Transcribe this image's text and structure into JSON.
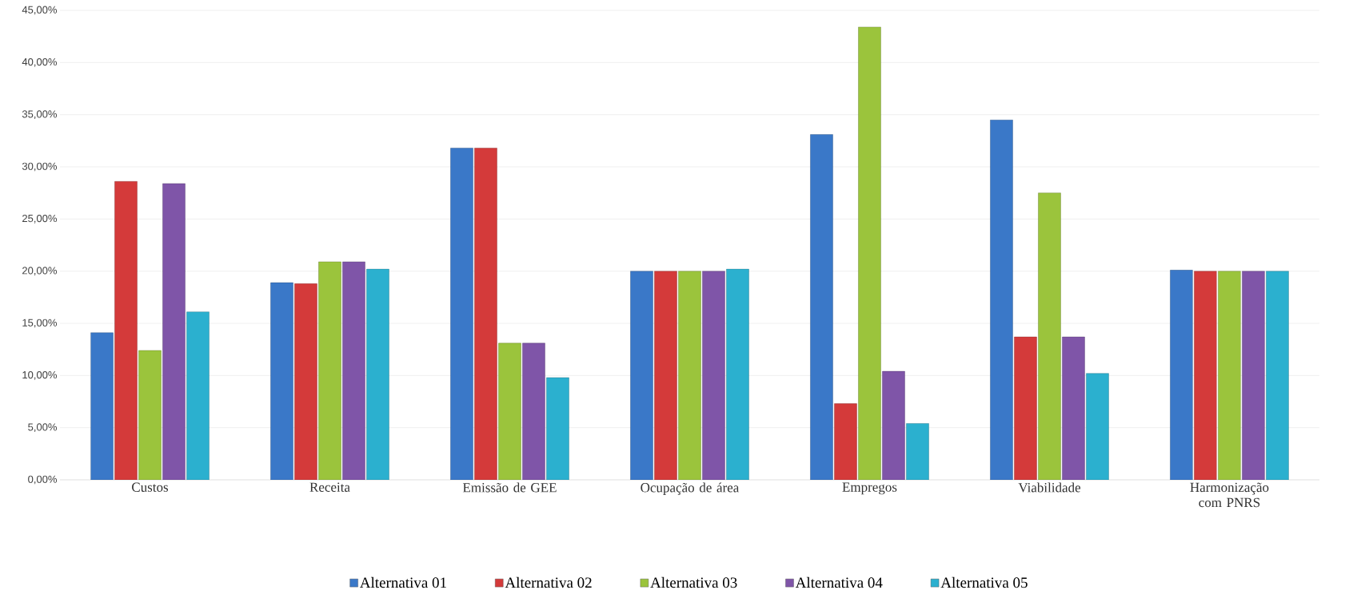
{
  "chart_data": {
    "type": "bar",
    "categories": [
      "Custos",
      "Receita",
      "Emissão de GEE",
      "Ocupação de área",
      "Empregos",
      "Viabilidade",
      "Harmonização com PNRS"
    ],
    "series": [
      {
        "name": "Alternativa 01",
        "color": "#3a78c8",
        "values": [
          14.1,
          18.9,
          31.8,
          20.0,
          33.1,
          34.5,
          20.1
        ]
      },
      {
        "name": "Alternativa 02",
        "color": "#d43a3a",
        "values": [
          28.6,
          18.8,
          31.8,
          20.0,
          7.3,
          13.7,
          20.0
        ]
      },
      {
        "name": "Alternativa 03",
        "color": "#9bc43c",
        "values": [
          12.4,
          20.9,
          13.1,
          20.0,
          43.4,
          27.5,
          20.0
        ]
      },
      {
        "name": "Alternativa 04",
        "color": "#7f55a8",
        "values": [
          28.4,
          20.9,
          13.1,
          20.0,
          10.4,
          13.7,
          20.0
        ]
      },
      {
        "name": "Alternativa 05",
        "color": "#2bb0cf",
        "values": [
          16.1,
          20.2,
          9.8,
          20.2,
          5.4,
          10.2,
          20.0
        ]
      }
    ],
    "ylim": [
      0,
      45
    ],
    "yticks": [
      {
        "value": 0,
        "label": "0,00%"
      },
      {
        "value": 5,
        "label": "5,00%"
      },
      {
        "value": 10,
        "label": "10,00%"
      },
      {
        "value": 15,
        "label": "15,00%"
      },
      {
        "value": 20,
        "label": "20,00%"
      },
      {
        "value": 25,
        "label": "25,00%"
      },
      {
        "value": 30,
        "label": "30,00%"
      },
      {
        "value": 35,
        "label": "35,00%"
      },
      {
        "value": 40,
        "label": "40,00%"
      },
      {
        "value": 45,
        "label": "45,00%"
      }
    ],
    "grid": "y",
    "legend": "bottom"
  }
}
